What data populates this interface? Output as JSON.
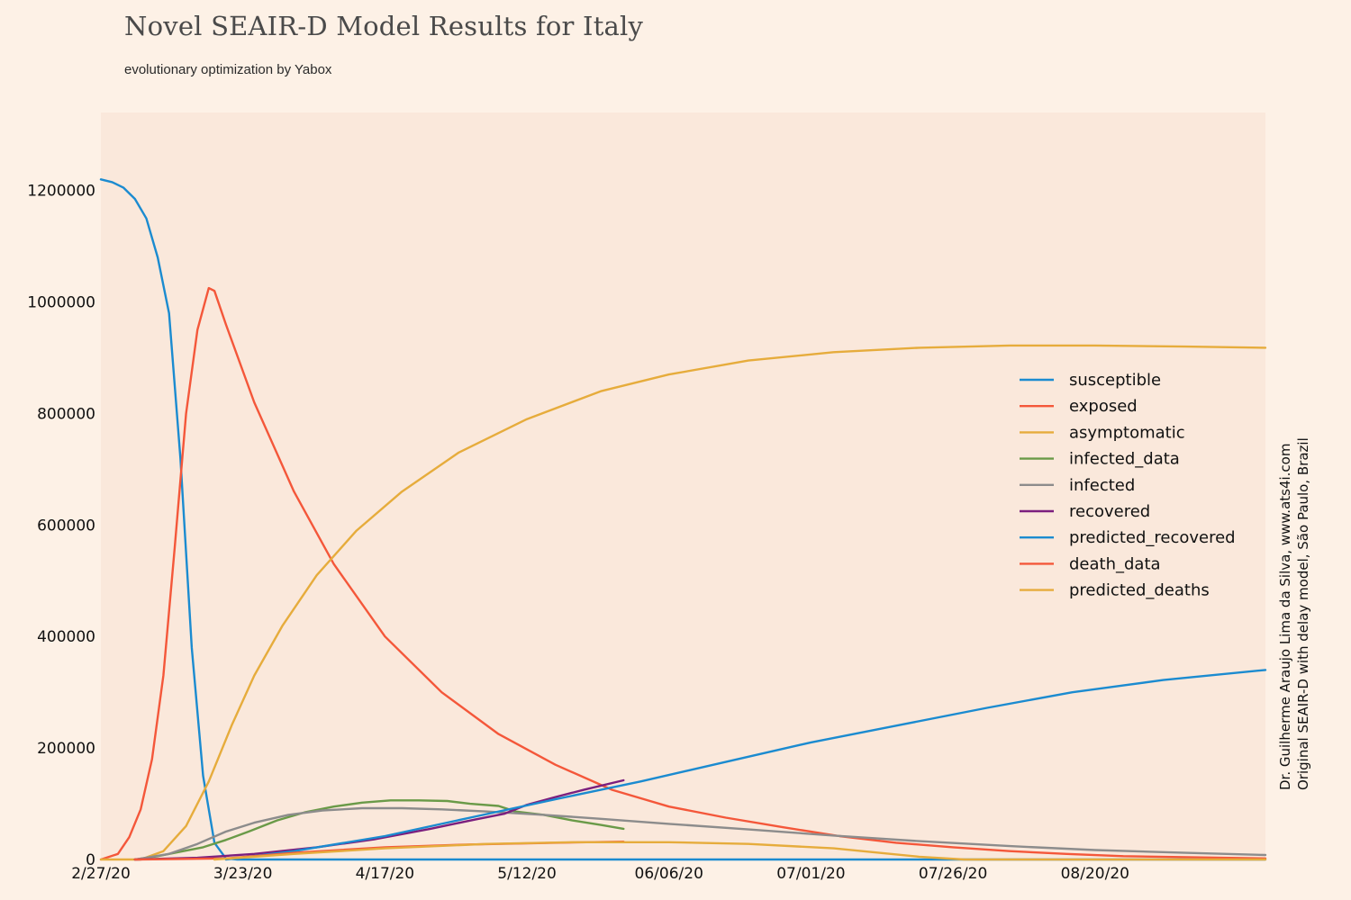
{
  "title": "Novel SEAIR-D Model Results for Italy",
  "subtitle": "evolutionary optimization by Yabox",
  "credit": {
    "line1": "Dr. Guilherme Araujo Lima da Silva, www.ats4i.com",
    "line2": "Original SEAIR-D with delay model, São Paulo, Brazil"
  },
  "chart_data": {
    "type": "line",
    "x_unit": "date",
    "xlim": [
      "2/27/20",
      "09/19/20"
    ],
    "ylim": [
      0,
      1340000
    ],
    "x_ticks": [
      "2/27/20",
      "3/23/20",
      "4/17/20",
      "5/12/20",
      "06/06/20",
      "07/01/20",
      "07/26/20",
      "08/20/20"
    ],
    "y_ticks": [
      0,
      200000,
      400000,
      600000,
      800000,
      1000000,
      1200000
    ],
    "grid": false,
    "legend_position": "right",
    "series": [
      {
        "name": "susceptible",
        "color": "#1b8bd0",
        "points": [
          [
            "2/27/20",
            1220000
          ],
          [
            "2/29/20",
            1215000
          ],
          [
            "3/2/20",
            1205000
          ],
          [
            "3/4/20",
            1185000
          ],
          [
            "3/6/20",
            1150000
          ],
          [
            "3/8/20",
            1080000
          ],
          [
            "3/10/20",
            980000
          ],
          [
            "3/12/20",
            720000
          ],
          [
            "3/14/20",
            380000
          ],
          [
            "3/16/20",
            150000
          ],
          [
            "3/18/20",
            30000
          ],
          [
            "3/20/20",
            2000
          ],
          [
            "3/22/20",
            0
          ],
          [
            "09/19/20",
            0
          ]
        ]
      },
      {
        "name": "exposed",
        "color": "#f4573a",
        "points": [
          [
            "2/27/20",
            0
          ],
          [
            "3/1/20",
            10000
          ],
          [
            "3/3/20",
            40000
          ],
          [
            "3/5/20",
            90000
          ],
          [
            "3/7/20",
            180000
          ],
          [
            "3/9/20",
            330000
          ],
          [
            "3/11/20",
            560000
          ],
          [
            "3/13/20",
            800000
          ],
          [
            "3/15/20",
            950000
          ],
          [
            "3/17/20",
            1025000
          ],
          [
            "3/18/20",
            1020000
          ],
          [
            "3/20/20",
            960000
          ],
          [
            "3/25/20",
            820000
          ],
          [
            "4/1/20",
            660000
          ],
          [
            "4/8/20",
            530000
          ],
          [
            "4/17/20",
            400000
          ],
          [
            "4/27/20",
            300000
          ],
          [
            "5/7/20",
            225000
          ],
          [
            "5/17/20",
            170000
          ],
          [
            "5/27/20",
            125000
          ],
          [
            "06/06/20",
            95000
          ],
          [
            "06/16/20",
            75000
          ],
          [
            "06/26/20",
            58000
          ],
          [
            "07/06/20",
            42000
          ],
          [
            "07/16/20",
            30000
          ],
          [
            "07/26/20",
            22000
          ],
          [
            "08/05/20",
            15000
          ],
          [
            "08/15/20",
            10000
          ],
          [
            "08/25/20",
            6000
          ],
          [
            "09/19/20",
            2000
          ]
        ]
      },
      {
        "name": "asymptomatic",
        "color": "#e6ac3c",
        "points": [
          [
            "2/27/20",
            0
          ],
          [
            "3/5/20",
            0
          ],
          [
            "3/9/20",
            15000
          ],
          [
            "3/13/20",
            60000
          ],
          [
            "3/17/20",
            140000
          ],
          [
            "3/21/20",
            240000
          ],
          [
            "3/25/20",
            330000
          ],
          [
            "3/30/20",
            420000
          ],
          [
            "4/5/20",
            510000
          ],
          [
            "4/12/20",
            590000
          ],
          [
            "4/20/20",
            660000
          ],
          [
            "4/30/20",
            730000
          ],
          [
            "5/12/20",
            790000
          ],
          [
            "5/25/20",
            840000
          ],
          [
            "06/06/20",
            870000
          ],
          [
            "06/20/20",
            895000
          ],
          [
            "07/05/20",
            910000
          ],
          [
            "07/20/20",
            918000
          ],
          [
            "08/05/20",
            922000
          ],
          [
            "08/20/20",
            922000
          ],
          [
            "09/05/20",
            920000
          ],
          [
            "09/19/20",
            918000
          ]
        ]
      },
      {
        "name": "infected_data",
        "color": "#6a9a48",
        "points": [
          [
            "3/4/20",
            0
          ],
          [
            "3/8/20",
            6000
          ],
          [
            "3/12/20",
            14000
          ],
          [
            "3/16/20",
            22000
          ],
          [
            "3/20/20",
            35000
          ],
          [
            "3/24/20",
            50000
          ],
          [
            "3/29/20",
            70000
          ],
          [
            "4/3/20",
            85000
          ],
          [
            "4/8/20",
            95000
          ],
          [
            "4/13/20",
            102000
          ],
          [
            "4/18/20",
            106000
          ],
          [
            "4/23/20",
            106000
          ],
          [
            "4/28/20",
            105000
          ],
          [
            "5/2/20",
            100000
          ],
          [
            "5/7/20",
            96000
          ],
          [
            "5/10/20",
            86000
          ],
          [
            "5/15/20",
            80000
          ],
          [
            "5/20/20",
            70000
          ],
          [
            "5/25/20",
            62000
          ],
          [
            "5/29/20",
            55000
          ]
        ]
      },
      {
        "name": "infected",
        "color": "#8c8c8c",
        "points": [
          [
            "3/4/20",
            0
          ],
          [
            "3/10/20",
            10000
          ],
          [
            "3/15/20",
            28000
          ],
          [
            "3/20/20",
            50000
          ],
          [
            "3/25/20",
            66000
          ],
          [
            "3/31/20",
            80000
          ],
          [
            "4/6/20",
            88000
          ],
          [
            "4/13/20",
            92000
          ],
          [
            "4/20/20",
            92000
          ],
          [
            "4/27/20",
            90000
          ],
          [
            "5/5/20",
            86000
          ],
          [
            "5/15/20",
            80000
          ],
          [
            "5/25/20",
            73000
          ],
          [
            "06/06/20",
            64000
          ],
          [
            "06/20/20",
            54000
          ],
          [
            "07/05/20",
            43000
          ],
          [
            "07/20/20",
            33000
          ],
          [
            "08/05/20",
            24000
          ],
          [
            "08/20/20",
            17000
          ],
          [
            "09/05/20",
            12000
          ],
          [
            "09/19/20",
            8000
          ]
        ]
      },
      {
        "name": "recovered",
        "color": "#7b1f7e",
        "points": [
          [
            "3/4/20",
            0
          ],
          [
            "3/15/20",
            3000
          ],
          [
            "3/25/20",
            10000
          ],
          [
            "4/5/20",
            22000
          ],
          [
            "4/15/20",
            36000
          ],
          [
            "4/25/20",
            55000
          ],
          [
            "5/3/20",
            72000
          ],
          [
            "5/8/20",
            82000
          ],
          [
            "5/12/20",
            98000
          ],
          [
            "5/17/20",
            112000
          ],
          [
            "5/22/20",
            125000
          ],
          [
            "5/29/20",
            142000
          ]
        ]
      },
      {
        "name": "predicted_recovered",
        "color": "#1b8bd0",
        "points": [
          [
            "3/20/20",
            0
          ],
          [
            "4/1/20",
            15000
          ],
          [
            "4/17/20",
            42000
          ],
          [
            "5/2/20",
            75000
          ],
          [
            "5/17/20",
            108000
          ],
          [
            "06/01/20",
            140000
          ],
          [
            "06/16/20",
            175000
          ],
          [
            "07/01/20",
            210000
          ],
          [
            "07/16/20",
            240000
          ],
          [
            "08/01/20",
            272000
          ],
          [
            "08/16/20",
            300000
          ],
          [
            "09/01/20",
            322000
          ],
          [
            "09/19/20",
            340000
          ]
        ]
      },
      {
        "name": "death_data",
        "color": "#f4573a",
        "points": [
          [
            "3/4/20",
            0
          ],
          [
            "3/20/20",
            2000
          ],
          [
            "4/1/20",
            12000
          ],
          [
            "4/17/20",
            22000
          ],
          [
            "5/2/20",
            27000
          ],
          [
            "5/17/20",
            30000
          ],
          [
            "5/29/20",
            32000
          ]
        ]
      },
      {
        "name": "predicted_deaths",
        "color": "#e6ac3c",
        "points": [
          [
            "3/18/20",
            0
          ],
          [
            "4/1/20",
            10000
          ],
          [
            "4/17/20",
            20000
          ],
          [
            "5/5/20",
            28000
          ],
          [
            "5/20/20",
            31000
          ],
          [
            "06/06/20",
            31000
          ],
          [
            "06/20/20",
            28000
          ],
          [
            "07/05/20",
            20000
          ],
          [
            "07/20/20",
            5000
          ],
          [
            "07/28/20",
            0
          ],
          [
            "09/19/20",
            0
          ]
        ]
      }
    ]
  }
}
